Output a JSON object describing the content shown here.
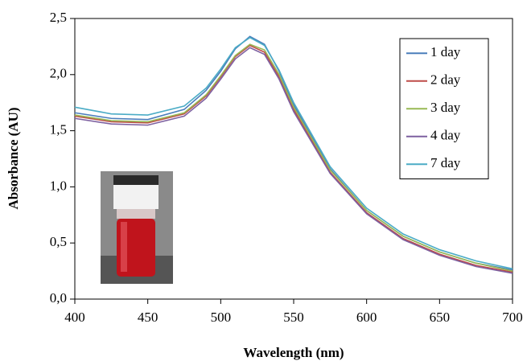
{
  "chart_data": {
    "type": "line",
    "xlabel": "Wavelength (nm)",
    "ylabel": "Absorbance (AU)",
    "x": [
      400,
      425,
      450,
      475,
      490,
      500,
      510,
      520,
      530,
      540,
      550,
      575,
      600,
      625,
      650,
      675,
      700
    ],
    "series": [
      {
        "name": "1 day",
        "color": "#4a7ebb",
        "values": [
          1.66,
          1.61,
          1.6,
          1.69,
          1.86,
          2.03,
          2.23,
          2.34,
          2.27,
          2.03,
          1.73,
          1.16,
          0.79,
          0.56,
          0.42,
          0.32,
          0.26
        ]
      },
      {
        "name": "2 day",
        "color": "#be4b48",
        "values": [
          1.63,
          1.58,
          1.57,
          1.65,
          1.81,
          1.98,
          2.16,
          2.26,
          2.2,
          1.98,
          1.69,
          1.13,
          0.77,
          0.54,
          0.4,
          0.3,
          0.24
        ]
      },
      {
        "name": "3 day",
        "color": "#98b954",
        "values": [
          1.64,
          1.59,
          1.58,
          1.66,
          1.82,
          1.99,
          2.17,
          2.27,
          2.22,
          2.0,
          1.71,
          1.15,
          0.79,
          0.56,
          0.42,
          0.32,
          0.25
        ]
      },
      {
        "name": "4 day",
        "color": "#7d60a0",
        "values": [
          1.61,
          1.56,
          1.55,
          1.63,
          1.79,
          1.96,
          2.14,
          2.24,
          2.18,
          1.96,
          1.67,
          1.12,
          0.76,
          0.53,
          0.39,
          0.29,
          0.23
        ]
      },
      {
        "name": "7 day",
        "color": "#4bacc6",
        "values": [
          1.71,
          1.65,
          1.64,
          1.72,
          1.88,
          2.05,
          2.24,
          2.33,
          2.26,
          2.04,
          1.75,
          1.18,
          0.81,
          0.58,
          0.44,
          0.34,
          0.27
        ]
      }
    ],
    "xlim": [
      400,
      700
    ],
    "xticks": [
      400,
      450,
      500,
      550,
      600,
      650,
      700
    ],
    "ylim": [
      0,
      2.5
    ],
    "yticks": [
      {
        "value": 0,
        "label": "0,0"
      },
      {
        "value": 0.5,
        "label": "0,5"
      },
      {
        "value": 1,
        "label": "1,0"
      },
      {
        "value": 1.5,
        "label": "1,5"
      },
      {
        "value": 2,
        "label": "2,0"
      },
      {
        "value": 2.5,
        "label": "2,5"
      }
    ],
    "legend": "upper right"
  }
}
